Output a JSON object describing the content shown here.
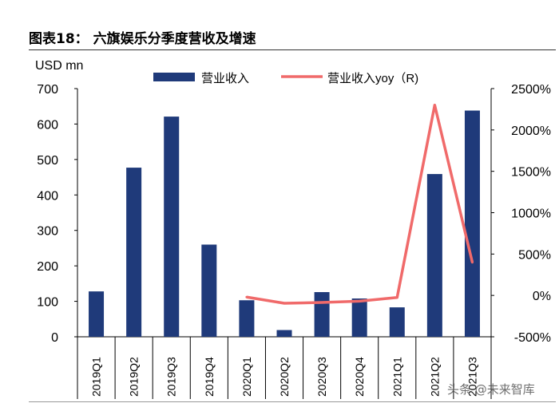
{
  "figure_title": "图表18：   六旗娱乐分季度营收及增速",
  "watermark": "头条 @未来智库",
  "colors": {
    "bar": "#1f3a7a",
    "line": "#f06a6a",
    "axis": "#000000"
  },
  "chart_data": {
    "type": "bar",
    "categories": [
      "2019Q1",
      "2019Q2",
      "2019Q3",
      "2019Q4",
      "2020Q1",
      "2020Q2",
      "2020Q3",
      "2020Q4",
      "2021Q1",
      "2021Q2",
      "2021Q3"
    ],
    "series": [
      {
        "name": "营业收入",
        "type": "bar",
        "axis": "left",
        "values": [
          128,
          477,
          621,
          260,
          103,
          19,
          126,
          108,
          83,
          459,
          638
        ]
      },
      {
        "name": "营业收入yoy（R)",
        "type": "line",
        "axis": "right",
        "values": [
          null,
          null,
          null,
          null,
          -20,
          -95,
          -85,
          -70,
          -25,
          2300,
          400
        ]
      }
    ],
    "ylabel_left": "USD mn",
    "ylim_left": [
      0,
      700
    ],
    "yticks_left": [
      "0",
      "100",
      "200",
      "300",
      "400",
      "500",
      "600",
      "700"
    ],
    "ylim_right": [
      -500,
      2500
    ],
    "yticks_right": [
      "-500%",
      "0%",
      "500%",
      "1000%",
      "1500%",
      "2000%",
      "2500%"
    ],
    "grid": false,
    "legend": "top"
  }
}
